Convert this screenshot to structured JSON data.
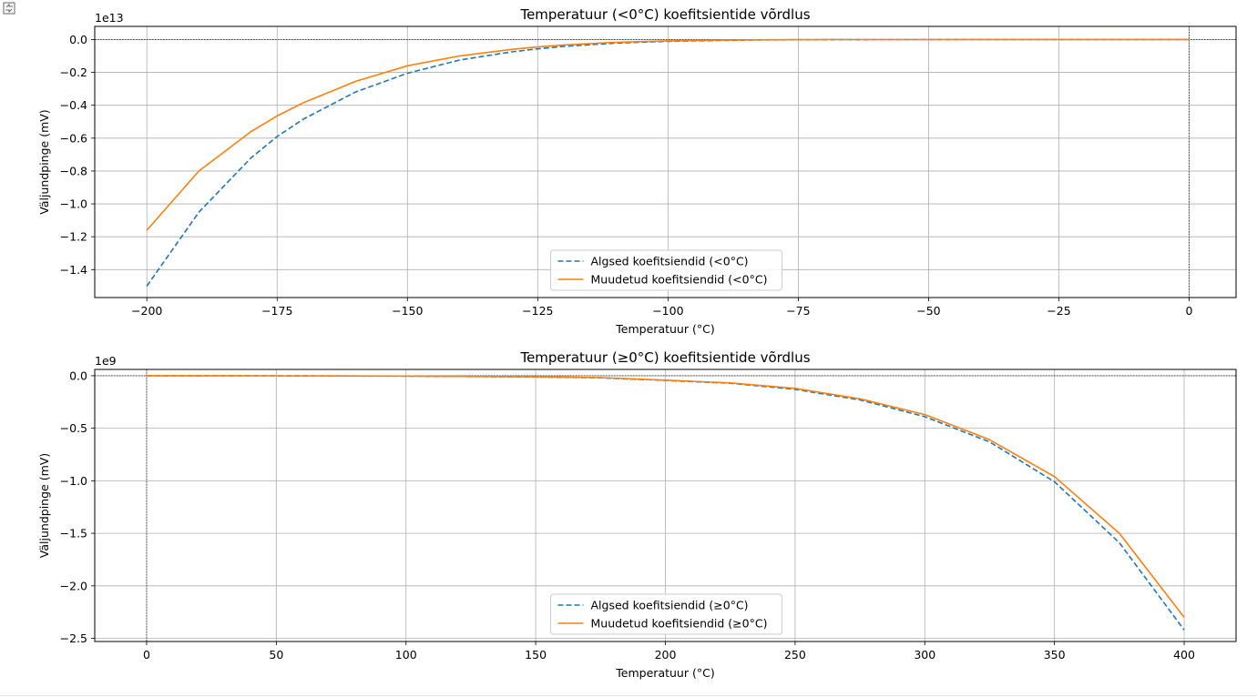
{
  "chart_data": [
    {
      "type": "line",
      "title": "Temperatuur (<0°C) koefitsientide võrdlus",
      "xlabel": "Temperatuur (°C)",
      "ylabel": "Väljundpinge (mV)",
      "offset_label": "1e13",
      "y_scale": 10000000000000.0,
      "xlim": [
        -210,
        9
      ],
      "ylim": [
        -15700000000000.0,
        800000000000.0
      ],
      "xticks": [
        -200,
        -175,
        -150,
        -125,
        -100,
        -75,
        -50,
        -25,
        0
      ],
      "xtick_labels": [
        "−200",
        "−175",
        "−150",
        "−125",
        "−100",
        "−75",
        "−50",
        "−25",
        "0"
      ],
      "yticks": [
        0,
        -2000000000000.0,
        -4000000000000.0,
        -6000000000000.0,
        -8000000000000.0,
        -10000000000000.0,
        -12000000000000.0,
        -14000000000000.0
      ],
      "ytick_labels": [
        "0.0",
        "−0.2",
        "−0.4",
        "−0.6",
        "−0.8",
        "−1.0",
        "−1.2",
        "−1.4"
      ],
      "grid": true,
      "legend_position": "lower center",
      "x": [
        -200,
        -190,
        -180,
        -175,
        -170,
        -160,
        -150,
        -140,
        -130,
        -125,
        -120,
        -110,
        -100,
        -90,
        -80,
        -75,
        -70,
        -60,
        -50,
        -40,
        -25,
        -10,
        0
      ],
      "series": [
        {
          "name": "Algsed koefitsiendid (<0°C)",
          "color": "#1f77b4",
          "dash": true,
          "values": [
            -15000000000000.0,
            -10500000000000.0,
            -7200000000000.0,
            -5900000000000.0,
            -4850000000000.0,
            -3200000000000.0,
            -2050000000000.0,
            -1250000000000.0,
            -750000000000.0,
            -570000000000.0,
            -420000000000.0,
            -220000000000.0,
            -110000000000.0,
            -50000000000.0,
            -20000000000.0,
            -12000000000.0,
            -7000000000.0,
            -2000000000.0,
            -500000000.0,
            0,
            0,
            0,
            0
          ]
        },
        {
          "name": "Muudetud koefitsiendid (<0°C)",
          "color": "#ff7f0e",
          "dash": false,
          "values": [
            -11600000000000.0,
            -8000000000000.0,
            -5600000000000.0,
            -4650000000000.0,
            -3850000000000.0,
            -2550000000000.0,
            -1600000000000.0,
            -1000000000000.0,
            -600000000000.0,
            -450000000000.0,
            -330000000000.0,
            -170000000000.0,
            -80000000000.0,
            -35000000000.0,
            -13000000000.0,
            -8000000000.0,
            -5000000000.0,
            -1000000000.0,
            -300000000.0,
            0,
            0,
            0,
            0
          ]
        }
      ]
    },
    {
      "type": "line",
      "title": "Temperatuur (≥0°C) koefitsientide võrdlus",
      "xlabel": "Temperatuur (°C)",
      "ylabel": "Väljundpinge (mV)",
      "offset_label": "1e9",
      "y_scale": 1000000000.0,
      "xlim": [
        -20,
        420
      ],
      "ylim": [
        -2530000000.0,
        60000000.0
      ],
      "xticks": [
        0,
        50,
        100,
        150,
        200,
        250,
        300,
        350,
        400
      ],
      "xtick_labels": [
        "0",
        "50",
        "100",
        "150",
        "200",
        "250",
        "300",
        "350",
        "400"
      ],
      "yticks": [
        0,
        -500000000.0,
        -1000000000.0,
        -1500000000.0,
        -2000000000.0,
        -2500000000.0
      ],
      "ytick_labels": [
        "0.0",
        "−0.5",
        "−1.0",
        "−1.5",
        "−2.0",
        "−2.5"
      ],
      "grid": true,
      "legend_position": "lower center",
      "x": [
        0,
        50,
        100,
        150,
        175,
        200,
        225,
        250,
        275,
        300,
        325,
        350,
        375,
        400
      ],
      "series": [
        {
          "name": "Algsed koefitsiendid (≥0°C)",
          "color": "#1f77b4",
          "dash": true,
          "values": [
            0,
            -500000.0,
            -4000000.0,
            -11000000.0,
            -20000000.0,
            -45000000.0,
            -72000000.0,
            -130000000.0,
            -230000000.0,
            -390000000.0,
            -630000000.0,
            -1010000000.0,
            -1590000000.0,
            -2420000000.0
          ]
        },
        {
          "name": "Muudetud koefitsiendid (≥0°C)",
          "color": "#ff7f0e",
          "dash": false,
          "values": [
            0,
            -400000.0,
            -3500000.0,
            -10000000.0,
            -18000000.0,
            -42000000.0,
            -68000000.0,
            -120000000.0,
            -220000000.0,
            -370000000.0,
            -610000000.0,
            -960000000.0,
            -1500000000.0,
            -2300000000.0
          ]
        }
      ]
    }
  ]
}
